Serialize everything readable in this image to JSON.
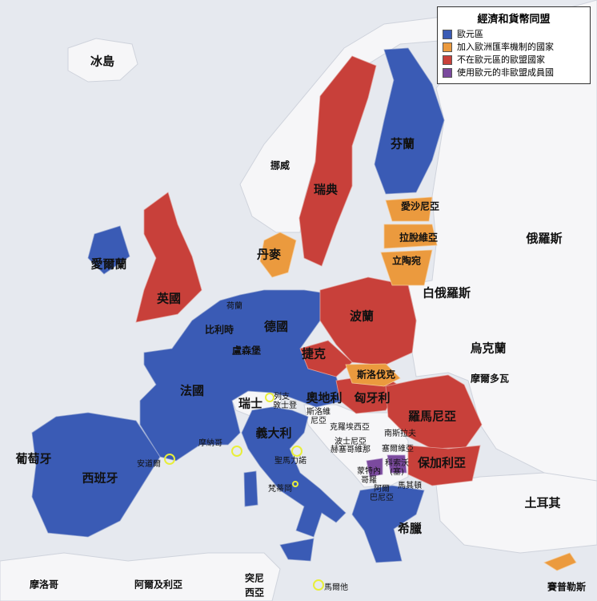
{
  "legend": {
    "title": "經濟和貨幣同盟",
    "items": [
      {
        "label": "歐元區",
        "color": "#3a5bb5"
      },
      {
        "label": "加入歐洲匯率機制的國家",
        "color": "#eb9a3e"
      },
      {
        "label": "不在歐元區的歐盟國家",
        "color": "#c8403a"
      },
      {
        "label": "使用歐元的非歐盟成員國",
        "color": "#7b4a9e"
      }
    ]
  },
  "colors": {
    "sea": "#e6e9ef",
    "land": "#f6f6f8",
    "eurozone": "#3a5bb5",
    "erm": "#eb9a3e",
    "eu_non_euro": "#c8403a",
    "non_eu_euro": "#7b4a9e",
    "microstate_marker": "#e8ee3a"
  },
  "labels": {
    "iceland": "冰島",
    "norway": "挪威",
    "sweden": "瑞典",
    "finland": "芬蘭",
    "estonia": "愛沙尼亞",
    "latvia": "拉脫維亞",
    "lithuania": "立陶宛",
    "denmark": "丹麥",
    "ireland": "愛爾蘭",
    "uk": "英國",
    "russia": "俄羅斯",
    "belarus": "白俄羅斯",
    "poland": "波蘭",
    "netherlands": "荷蘭",
    "germany": "德國",
    "belgium": "比利時",
    "luxembourg": "盧森堡",
    "czech": "捷克",
    "ukraine": "烏克蘭",
    "slovakia": "斯洛伐克",
    "moldova": "摩爾多瓦",
    "france": "法國",
    "switzerland": "瑞士",
    "liechtenstein_1": "列支",
    "liechtenstein_2": "敦士登",
    "austria": "奧地利",
    "hungary": "匈牙利",
    "romania": "羅馬尼亞",
    "slovenia_1": "斯洛維",
    "slovenia_2": "尼亞",
    "croatia": "克羅埃西亞",
    "yugoslavia": "南斯拉夫",
    "bosnia_1": "波士尼亞",
    "bosnia_2": "赫塞哥維那",
    "serbia": "塞爾維亞",
    "italy": "義大利",
    "kosovo_1": "科索沃",
    "kosovo_2": "(塞)",
    "montenegro_1": "蒙特內",
    "montenegro_2": "哥羅",
    "bulgaria": "保加利亞",
    "portugal": "葡萄牙",
    "spain": "西班牙",
    "andorra": "安道爾",
    "monaco": "摩納哥",
    "san_marino": "聖馬力諾",
    "vatican": "梵蒂岡",
    "albania_1": "阿爾",
    "albania_2": "巴尼亞",
    "macedonia": "馬其頓",
    "turkey": "土耳其",
    "greece": "希臘",
    "morocco": "摩洛哥",
    "algeria": "阿爾及利亞",
    "tunisia_1": "突尼",
    "tunisia_2": "西亞",
    "malta": "馬爾他",
    "cyprus": "賽普勒斯"
  }
}
